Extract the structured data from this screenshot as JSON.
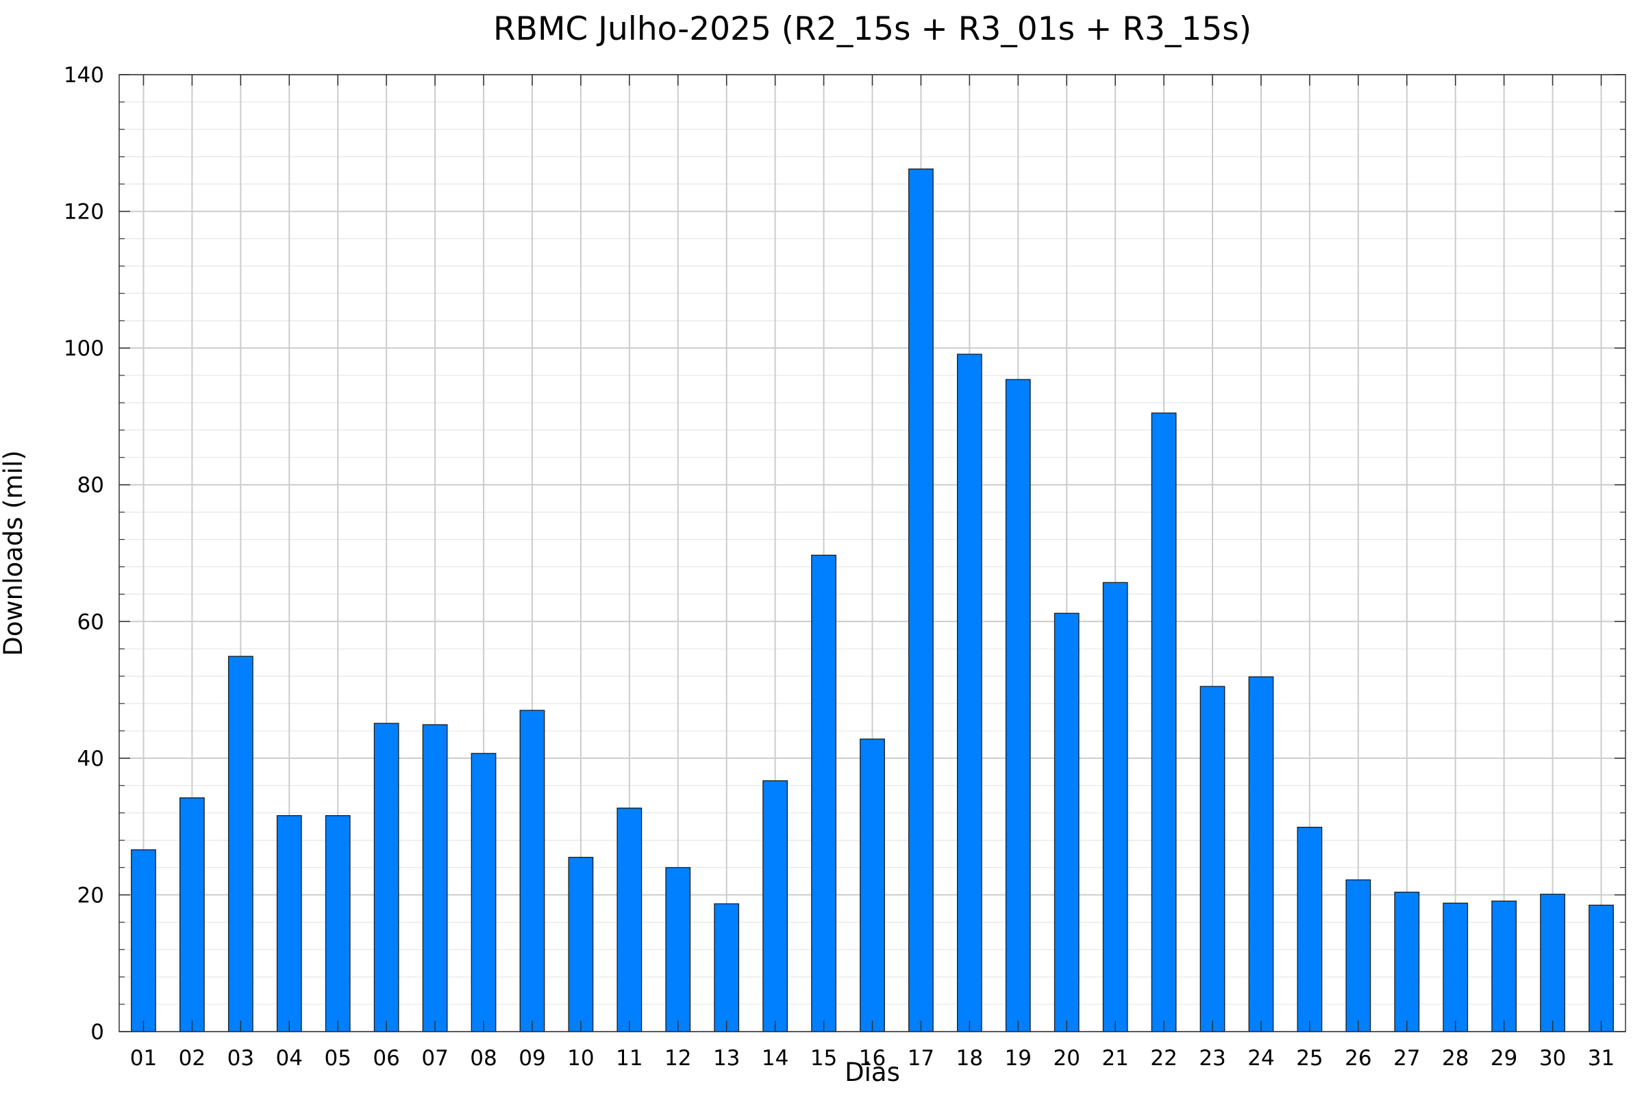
{
  "chart_data": {
    "type": "bar",
    "title": "RBMC Julho-2025 (R2_15s + R3_01s + R3_15s)",
    "xlabel": "Dias",
    "ylabel": "Downloads (mil)",
    "ylim": [
      0,
      140
    ],
    "yticks": [
      0,
      20,
      40,
      60,
      80,
      100,
      120,
      140
    ],
    "grid": true,
    "bar_color": "#0080ff",
    "categories": [
      "01",
      "02",
      "03",
      "04",
      "05",
      "06",
      "07",
      "08",
      "09",
      "10",
      "11",
      "12",
      "13",
      "14",
      "15",
      "16",
      "17",
      "18",
      "19",
      "20",
      "21",
      "22",
      "23",
      "24",
      "25",
      "26",
      "27",
      "28",
      "29",
      "30",
      "31"
    ],
    "values": [
      26.6,
      34.2,
      54.9,
      31.6,
      31.6,
      45.1,
      44.9,
      40.7,
      47.0,
      25.5,
      32.7,
      24.0,
      18.7,
      36.7,
      69.7,
      42.8,
      126.2,
      99.1,
      95.4,
      61.2,
      65.7,
      90.5,
      50.5,
      51.9,
      29.9,
      22.2,
      20.4,
      18.8,
      19.1,
      20.1,
      18.5
    ]
  }
}
